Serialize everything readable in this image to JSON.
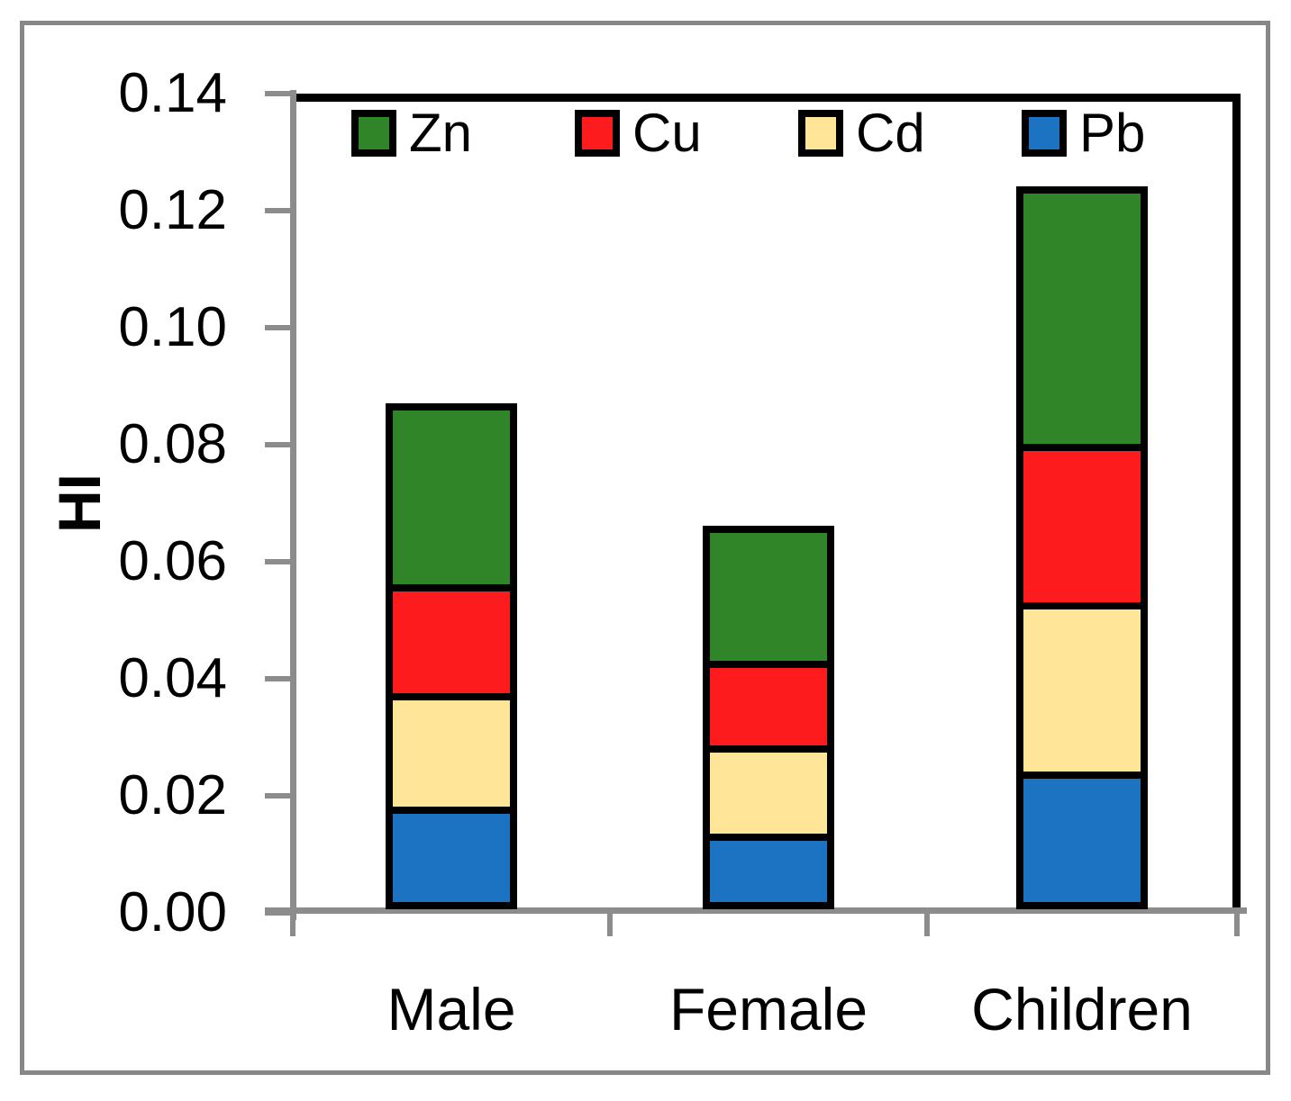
{
  "figure": {
    "background_color": "#FFFFFF",
    "outer_border_color": "#878787",
    "plot_border_color": "#000000",
    "axis_color": "#8C8C8C"
  },
  "chart_data": {
    "type": "bar",
    "stacked": true,
    "title": "",
    "xlabel": "",
    "ylabel": "HI",
    "categories": [
      "Male",
      "Female",
      "Children"
    ],
    "series": [
      {
        "name": "Pb",
        "color": "#1B73C2",
        "values": [
          0.0175,
          0.013,
          0.0235
        ]
      },
      {
        "name": "Cd",
        "color": "#FFE598",
        "values": [
          0.0195,
          0.015,
          0.029
        ]
      },
      {
        "name": "Cu",
        "color": "#FE1B1E",
        "values": [
          0.0185,
          0.0145,
          0.027
        ]
      },
      {
        "name": "Zn",
        "color": "#2F8527",
        "values": [
          0.031,
          0.023,
          0.044
        ]
      }
    ],
    "stack_order_bottom_to_top": [
      "Pb",
      "Cd",
      "Cu",
      "Zn"
    ],
    "stack_totals": [
      0.0865,
      0.0655,
      0.1235
    ],
    "ylim": [
      0,
      0.14
    ],
    "ytick_step": 0.02,
    "ytick_labels": [
      "0.14",
      "0.12",
      "0.10",
      "0.08",
      "0.06",
      "0.04",
      "0.02",
      "0.00"
    ],
    "grid": false,
    "bar_border_color": "#000000",
    "legend": {
      "position": "top-inside",
      "order": [
        "Zn",
        "Cu",
        "Cd",
        "Pb"
      ]
    }
  }
}
